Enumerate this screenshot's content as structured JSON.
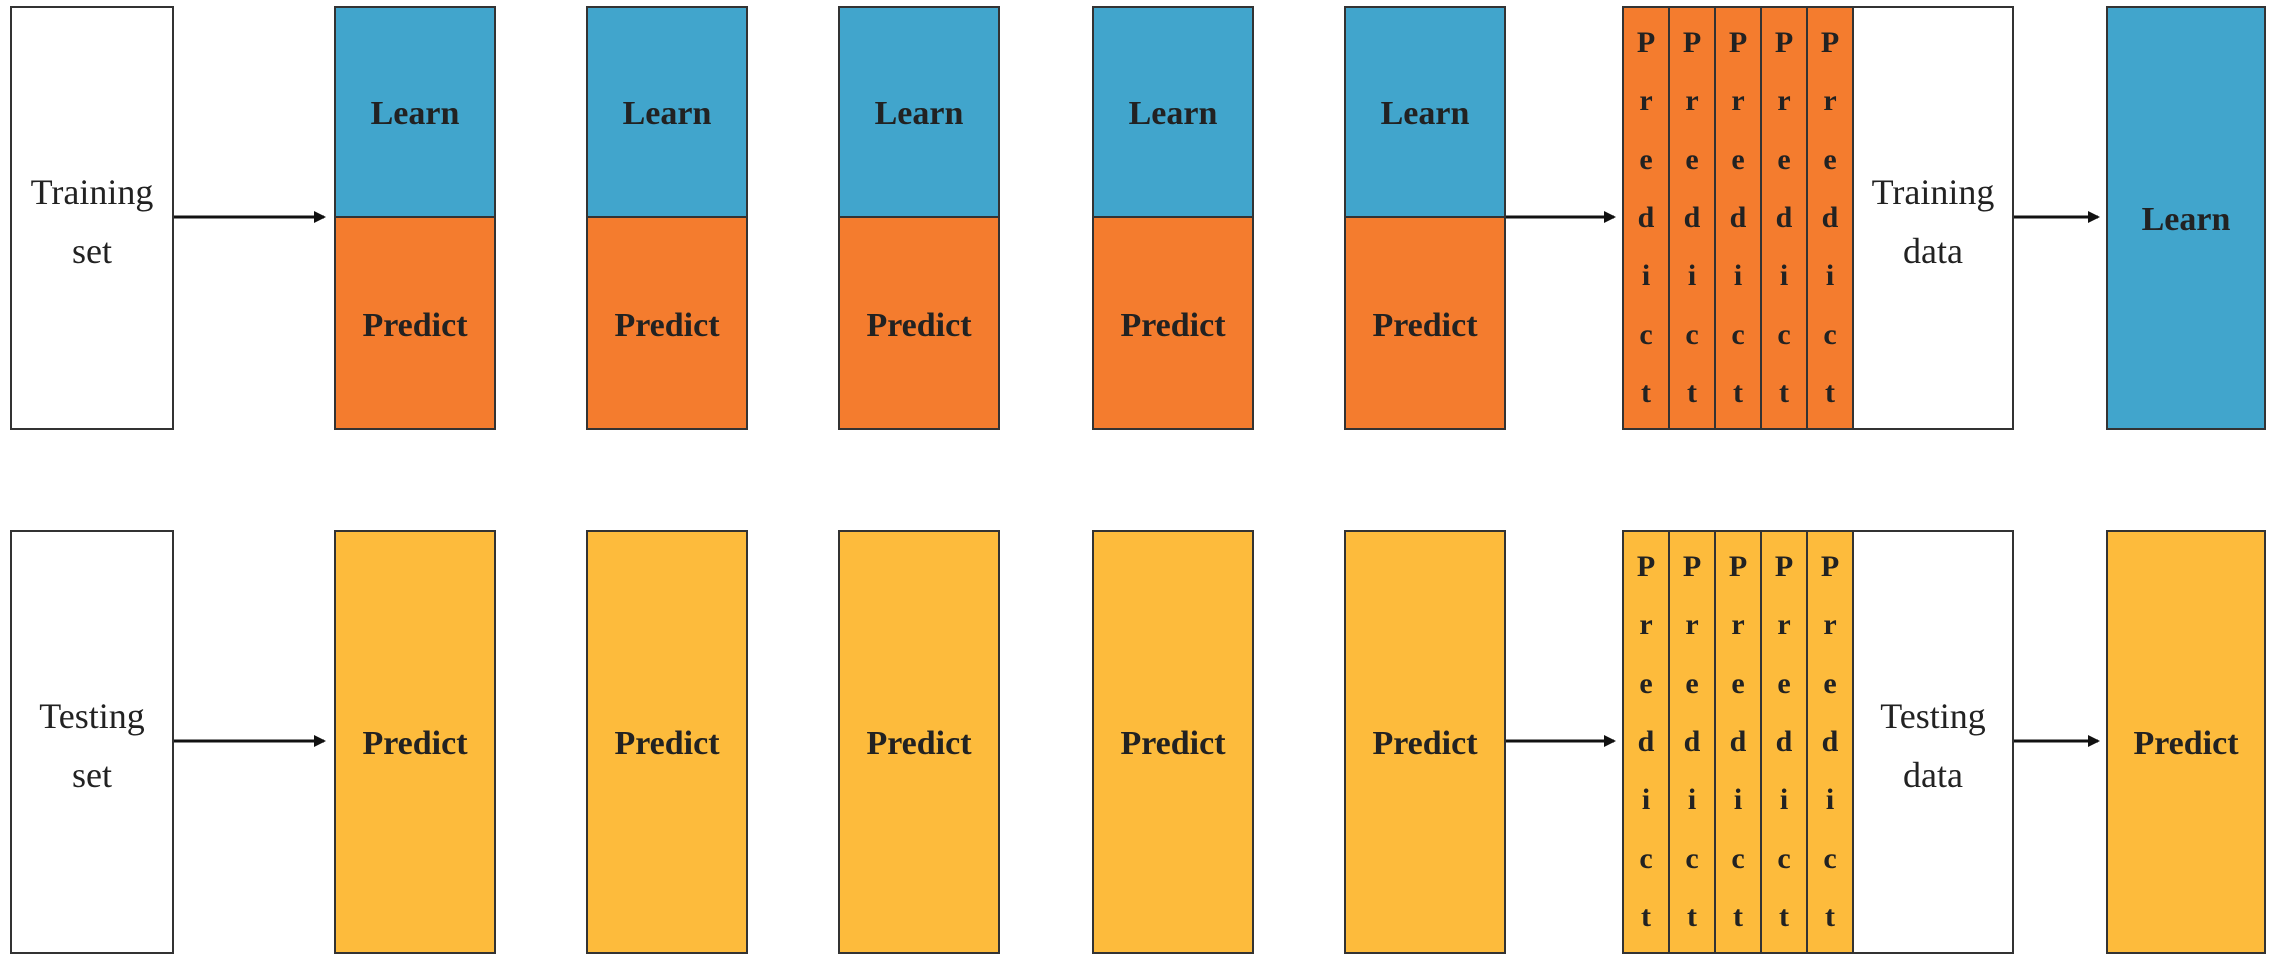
{
  "colors": {
    "learn": "#41a5cc",
    "predict_train": "#f47c2e",
    "predict_test": "#fdbb3c",
    "border": "#333333",
    "arrow": "#111111"
  },
  "train_row": {
    "input_label": "Training set",
    "fold_learn_label": "Learn",
    "fold_predict_label": "Predict",
    "stack_strip_label": "Predict",
    "stack_data_label": "Training data",
    "final_label": "Learn"
  },
  "test_row": {
    "input_label": "Testing set",
    "fold_predict_label": "Predict",
    "stack_strip_label": "Predict",
    "stack_data_label": "Testing data",
    "final_label": "Predict"
  }
}
